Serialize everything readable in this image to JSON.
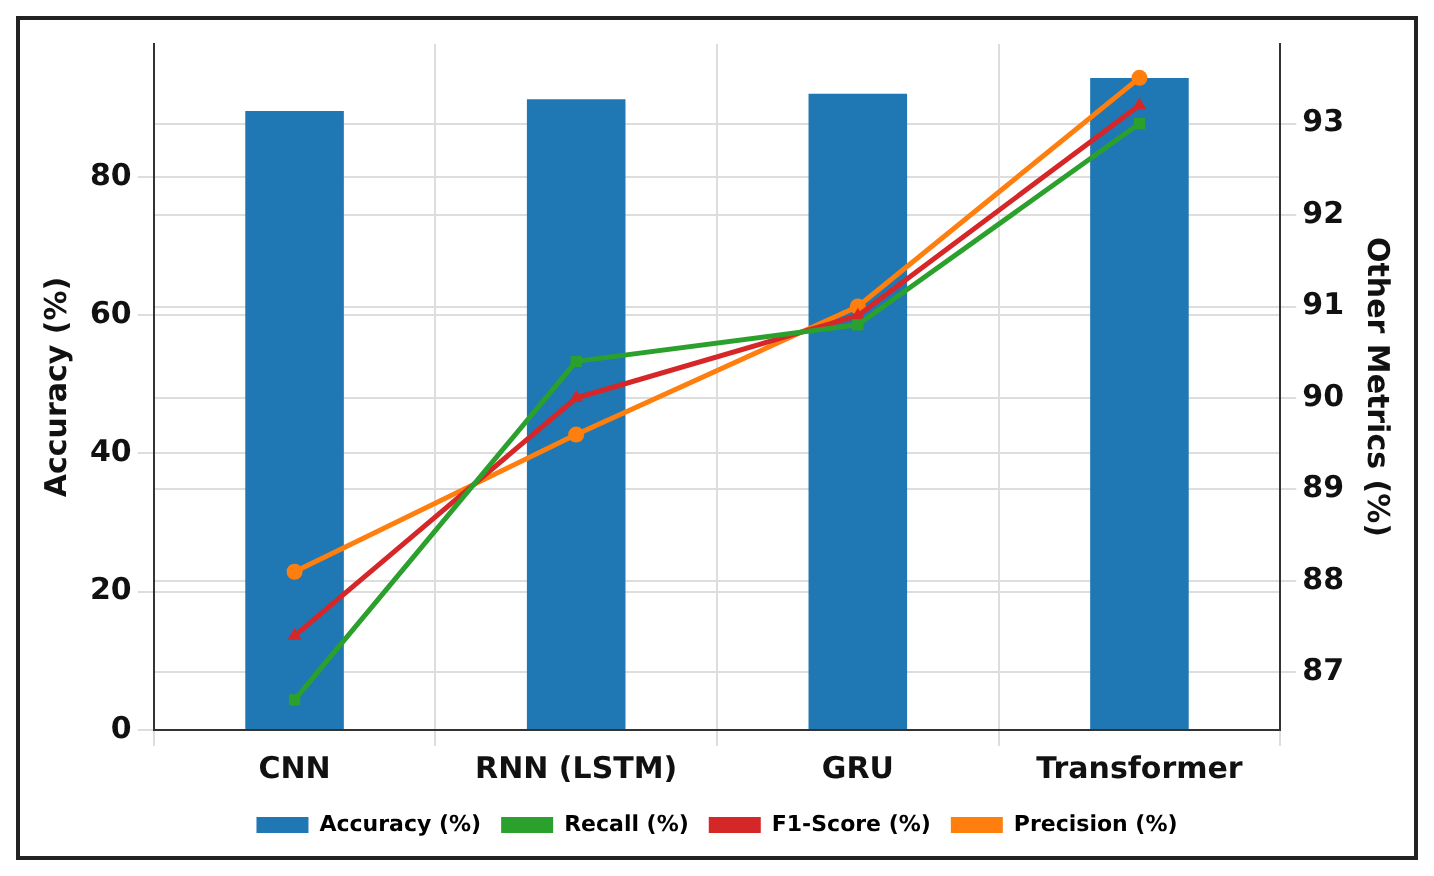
{
  "chart_data": {
    "type": "bar",
    "ylabel": "Accuracy (%)",
    "y2label": "Other Metrics (%)",
    "categories": [
      "CNN",
      "RNN (LSTM)",
      "GRU",
      "Transformer"
    ],
    "series": [
      {
        "name": "Accuracy (%)",
        "color": "#1f77b4",
        "values": [
          89.5,
          91.2,
          92.0,
          94.3
        ]
      },
      {
        "name": "Recall (%)",
        "type": "line",
        "axis": "y2",
        "marker": "square",
        "color": "#2ca02c",
        "values": [
          86.7,
          90.4,
          90.8,
          93.0
        ]
      },
      {
        "name": "F1-Score (%)",
        "type": "line",
        "axis": "y2",
        "marker": "triangle",
        "color": "#d62728",
        "values": [
          87.4,
          90.0,
          90.9,
          93.2
        ]
      },
      {
        "name": "Precision (%)",
        "type": "line",
        "axis": "y2",
        "marker": "circle",
        "color": "#ff7f0e",
        "values": [
          88.1,
          89.6,
          91.0,
          93.5
        ]
      }
    ],
    "ylim": [
      0,
      99.2
    ],
    "yticks": [
      0,
      20,
      40,
      60,
      80
    ],
    "y2lim": [
      86.37,
      93.87
    ],
    "y2ticks": [
      87,
      88,
      89,
      90,
      91,
      92,
      93
    ],
    "grid": true,
    "legend": "bottom"
  }
}
